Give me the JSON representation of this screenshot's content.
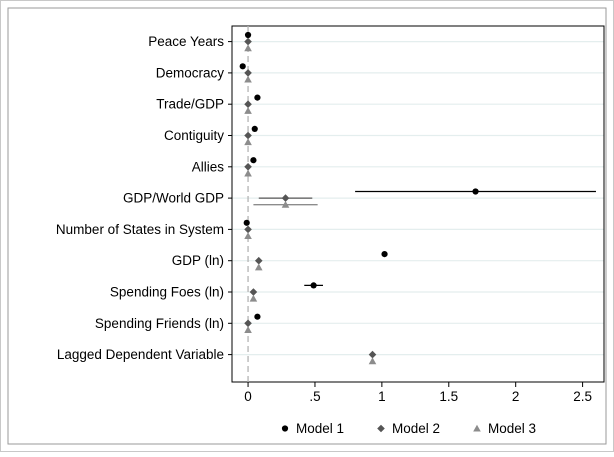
{
  "chart_data": {
    "type": "scatter",
    "title": "",
    "xlabel": "",
    "ylabel": "",
    "xlim": [
      -0.12,
      2.66
    ],
    "x_ticks": [
      0,
      0.5,
      1,
      1.5,
      2,
      2.5
    ],
    "x_tick_labels": [
      "0",
      ".5",
      "1",
      "1.5",
      "2",
      "2.5"
    ],
    "reference_line_x": 0,
    "categories": [
      "Peace Years",
      "Democracy",
      "Trade/GDP",
      "Contiguity",
      "Allies",
      "GDP/World GDP",
      "Number of States in System",
      "GDP (ln)",
      "Spending Foes (ln)",
      "Spending Friends (ln)",
      "Lagged Dependent Variable"
    ],
    "legend_position": "bottom",
    "series": [
      {
        "name": "Model 1",
        "marker": "circle",
        "color": "#000000",
        "points": [
          {
            "category": "Peace Years",
            "x": 0.0
          },
          {
            "category": "Democracy",
            "x": -0.04
          },
          {
            "category": "Trade/GDP",
            "x": 0.07
          },
          {
            "category": "Contiguity",
            "x": 0.05
          },
          {
            "category": "Allies",
            "x": 0.04
          },
          {
            "category": "GDP/World GDP",
            "x": 1.7,
            "ci": [
              0.8,
              2.6
            ]
          },
          {
            "category": "Number of States in System",
            "x": -0.01
          },
          {
            "category": "GDP (ln)",
            "x": 1.02
          },
          {
            "category": "Spending Foes (ln)",
            "x": 0.49,
            "ci": [
              0.42,
              0.56
            ]
          },
          {
            "category": "Spending Friends (ln)",
            "x": 0.07
          }
        ]
      },
      {
        "name": "Model 2",
        "marker": "diamond",
        "color": "#555555",
        "points": [
          {
            "category": "Peace Years",
            "x": 0.0
          },
          {
            "category": "Democracy",
            "x": 0.0
          },
          {
            "category": "Trade/GDP",
            "x": 0.0
          },
          {
            "category": "Contiguity",
            "x": 0.0
          },
          {
            "category": "Allies",
            "x": 0.0
          },
          {
            "category": "GDP/World GDP",
            "x": 0.28,
            "ci": [
              0.08,
              0.48
            ]
          },
          {
            "category": "Number of States in System",
            "x": 0.0
          },
          {
            "category": "GDP (ln)",
            "x": 0.08
          },
          {
            "category": "Spending Foes (ln)",
            "x": 0.04
          },
          {
            "category": "Spending Friends (ln)",
            "x": 0.0
          },
          {
            "category": "Lagged Dependent Variable",
            "x": 0.93
          }
        ]
      },
      {
        "name": "Model 3",
        "marker": "triangle",
        "color": "#8c8c8c",
        "points": [
          {
            "category": "Peace Years",
            "x": 0.0
          },
          {
            "category": "Democracy",
            "x": 0.0
          },
          {
            "category": "Trade/GDP",
            "x": 0.0
          },
          {
            "category": "Contiguity",
            "x": 0.0
          },
          {
            "category": "Allies",
            "x": 0.0
          },
          {
            "category": "GDP/World GDP",
            "x": 0.28,
            "ci": [
              0.04,
              0.52
            ]
          },
          {
            "category": "Number of States in System",
            "x": 0.0
          },
          {
            "category": "GDP (ln)",
            "x": 0.08
          },
          {
            "category": "Spending Foes (ln)",
            "x": 0.04
          },
          {
            "category": "Spending Friends (ln)",
            "x": 0.0
          },
          {
            "category": "Lagged Dependent Variable",
            "x": 0.93
          }
        ]
      }
    ]
  }
}
